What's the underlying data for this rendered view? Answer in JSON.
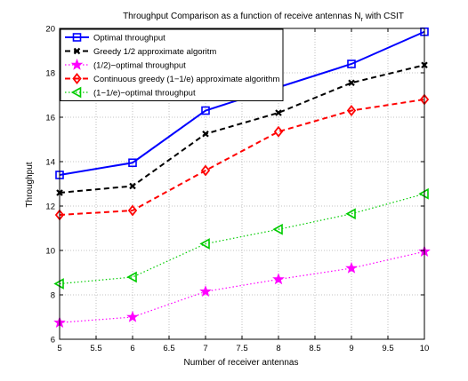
{
  "chart_data": {
    "type": "line",
    "title": "Throughput Comparison as a function of receive antennas N",
    "title_subscript": "r",
    "title_suffix": " with CSIT",
    "xlabel": "Number of receiver antennas",
    "ylabel": "Throughput",
    "xlim": [
      5,
      10
    ],
    "ylim": [
      6,
      20
    ],
    "x_ticks": [
      5,
      5.5,
      6,
      6.5,
      7,
      7.5,
      8,
      8.5,
      9,
      9.5,
      10
    ],
    "x_tick_labels": [
      "5",
      "5.5",
      "6",
      "6.5",
      "7",
      "7.5",
      "8",
      "8.5",
      "9",
      "9.5",
      "10"
    ],
    "y_ticks": [
      6,
      8,
      10,
      12,
      14,
      16,
      18,
      20
    ],
    "y_tick_labels": [
      "6",
      "8",
      "10",
      "12",
      "14",
      "16",
      "18",
      "20"
    ],
    "grid": true,
    "legend_position": "top-left",
    "x": [
      5,
      6,
      7,
      8,
      9,
      10
    ],
    "series": [
      {
        "name": "Optimal throughput",
        "values": [
          13.4,
          13.95,
          16.3,
          17.35,
          18.4,
          19.85
        ],
        "color": "#0000ff",
        "dash": "solid",
        "marker": "square",
        "line_width": 2
      },
      {
        "name": "Greedy 1/2 approximate algoritm",
        "values": [
          12.6,
          12.9,
          15.25,
          16.2,
          17.55,
          18.35
        ],
        "color": "#000000",
        "dash": "dashed",
        "marker": "x",
        "line_width": 2
      },
      {
        "name": "(1/2)−optimal throughput",
        "values": [
          6.75,
          7.0,
          8.15,
          8.7,
          9.2,
          9.95
        ],
        "color": "#ff00ff",
        "dash": "dotted",
        "marker": "star",
        "line_width": 1.2
      },
      {
        "name": "Continuous greedy (1−1/e) approximate algorithm",
        "values": [
          11.6,
          11.8,
          13.6,
          15.35,
          16.3,
          16.8
        ],
        "color": "#ff0000",
        "dash": "dashed",
        "marker": "diamond",
        "line_width": 2
      },
      {
        "name": "(1−1/e)−optimal throughput",
        "values": [
          8.5,
          8.8,
          10.3,
          10.95,
          11.65,
          12.55
        ],
        "color": "#00cc00",
        "dash": "dotted",
        "marker": "triangle-left",
        "line_width": 1.2
      }
    ]
  }
}
